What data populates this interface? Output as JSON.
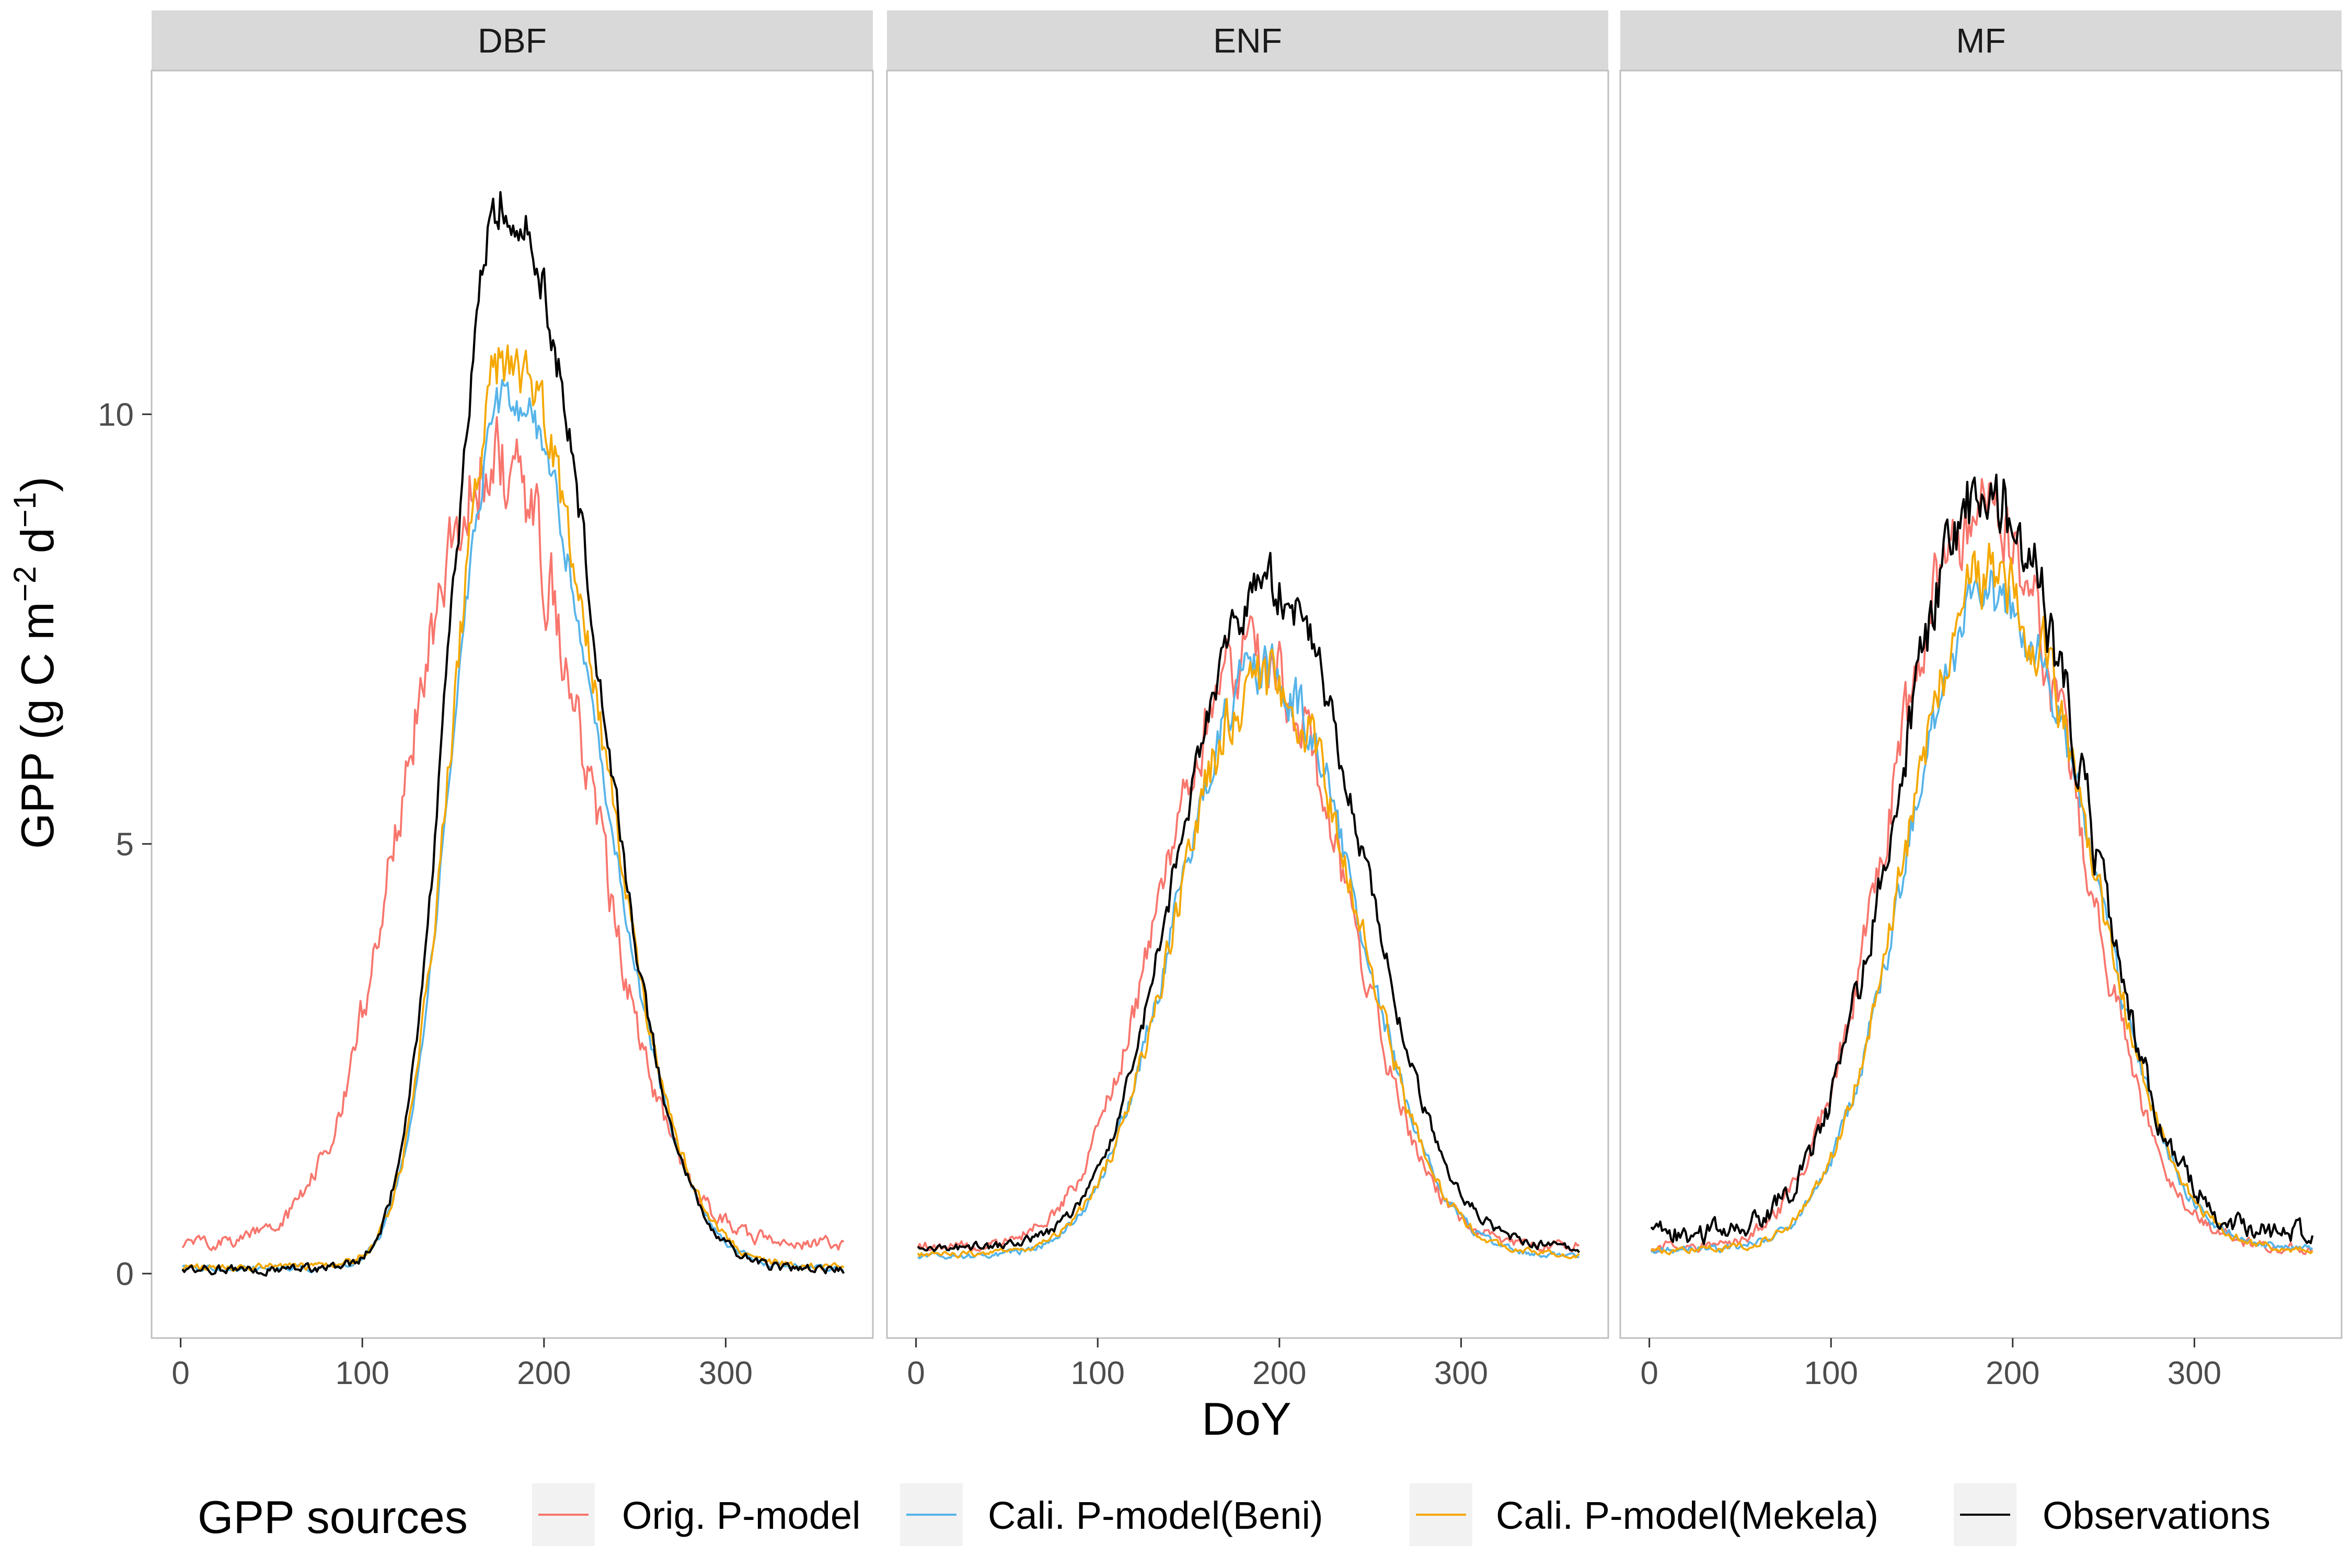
{
  "chart_data": {
    "type": "line",
    "facets": [
      "DBF",
      "ENF",
      "MF"
    ],
    "xlabel": "DoY",
    "ylabel": "GPP (g C m",
    "ylabel_sup1": "−2",
    "ylabel_mid": " d",
    "ylabel_sup2": "−1",
    "ylabel_end": ")",
    "xlim": [
      -16,
      381
    ],
    "ylim": [
      -0.75,
      14.0
    ],
    "x_ticks": [
      0,
      100,
      200,
      300
    ],
    "y_ticks": [
      0,
      5,
      10
    ],
    "grid": false,
    "legend_position": "bottom",
    "legend_title": "GPP sources",
    "series": [
      {
        "name": "Orig. P-model",
        "color": "#F8766D"
      },
      {
        "name": "Cali. P-model(Beni)",
        "color": "#56B4E9"
      },
      {
        "name": "Cali. P-model(Mekela)",
        "color": "#F5A800"
      },
      {
        "name": "Observations",
        "color": "#000000"
      }
    ],
    "curve_shapes": {
      "DBF": [
        {
          "base": 0.35,
          "peak": 9.4,
          "center": 172,
          "wl": 48,
          "wr": 52,
          "spread": 0.13,
          "noise": 0.55,
          "lnoise": 0.09
        },
        {
          "base": 0.06,
          "peak": 10.2,
          "center": 180,
          "wl": 30,
          "wr": 50,
          "spread": 0.12,
          "noise": 0.28,
          "lnoise": 0.04
        },
        {
          "base": 0.08,
          "peak": 10.6,
          "center": 180,
          "wl": 30,
          "wr": 50,
          "spread": 0.12,
          "noise": 0.45,
          "lnoise": 0.05
        },
        {
          "base": 0.05,
          "peak": 12.5,
          "center": 178,
          "wl": 29,
          "wr": 49,
          "spread": 0.12,
          "noise": 0.35,
          "lnoise": 0.06
        }
      ],
      "ENF": [
        {
          "base": 0.32,
          "peak": 7.2,
          "center": 186,
          "wl": 50,
          "wr": 50,
          "spread": 0.12,
          "noise": 0.4,
          "lnoise": 0.07
        },
        {
          "base": 0.2,
          "peak": 7.0,
          "center": 192,
          "wl": 48,
          "wr": 50,
          "spread": 0.12,
          "noise": 0.35,
          "lnoise": 0.04
        },
        {
          "base": 0.22,
          "peak": 6.9,
          "center": 192,
          "wl": 48,
          "wr": 50,
          "spread": 0.12,
          "noise": 0.4,
          "lnoise": 0.04
        },
        {
          "base": 0.3,
          "peak": 8.0,
          "center": 193,
          "wl": 48,
          "wr": 52,
          "spread": 0.12,
          "noise": 0.3,
          "lnoise": 0.06
        }
      ],
      "MF": [
        {
          "base": 0.3,
          "peak": 8.8,
          "center": 183,
          "wl": 50,
          "wr": 52,
          "spread": 0.12,
          "noise": 0.5,
          "lnoise": 0.08
        },
        {
          "base": 0.28,
          "peak": 7.9,
          "center": 190,
          "wl": 48,
          "wr": 52,
          "spread": 0.12,
          "noise": 0.4,
          "lnoise": 0.05
        },
        {
          "base": 0.28,
          "peak": 8.1,
          "center": 190,
          "wl": 48,
          "wr": 52,
          "spread": 0.12,
          "noise": 0.45,
          "lnoise": 0.05
        },
        {
          "base": 0.45,
          "peak": 9.0,
          "center": 187,
          "wl": 50,
          "wr": 52,
          "spread": 0.12,
          "noise": 0.4,
          "lnoise": 0.15
        }
      ]
    }
  }
}
